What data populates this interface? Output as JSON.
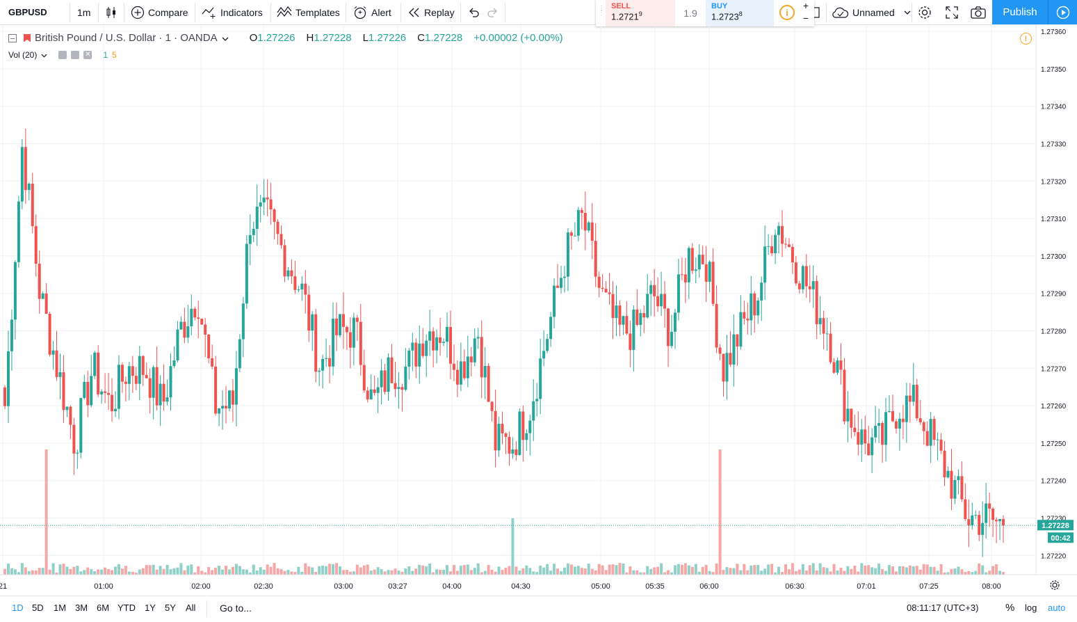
{
  "toolbar": {
    "symbol": "GBPUSD",
    "interval": "1m",
    "compare": "Compare",
    "indicators": "Indicators",
    "templates": "Templates",
    "alert": "Alert",
    "replay": "Replay",
    "layout_name": "Unnamed",
    "publish": "Publish"
  },
  "trade": {
    "sell_label": "SELL",
    "sell_price_main": "1.2721",
    "sell_price_sup": "9",
    "spread": "1.9",
    "buy_label": "BUY",
    "buy_price_main": "1.2723",
    "buy_price_sup": "8",
    "zoom_in": "+",
    "zoom_out": "−",
    "info": "i"
  },
  "legend": {
    "title": "British Pound / U.S. Dollar · 1 · OANDA",
    "o_label": "O",
    "o_value": "1.27226",
    "h_label": "H",
    "h_value": "1.27228",
    "l_label": "L",
    "l_value": "1.27226",
    "c_label": "C",
    "c_value": "1.27228",
    "change": "+0.00002 (+0.00%)",
    "vol_label": "Vol (20)",
    "vol_value_1": "1",
    "vol_value_2": "5"
  },
  "chart_data": {
    "type": "candlestick",
    "symbol": "GBPUSD",
    "interval": "1m",
    "y_range": [
      1.27212,
      1.27362
    ],
    "y_ticks": [
      "1.27220",
      "1.27230",
      "1.27240",
      "1.27250",
      "1.27260",
      "1.27270",
      "1.27280",
      "1.27290",
      "1.27300",
      "1.27310",
      "1.27320",
      "1.27330",
      "1.27340",
      "1.27350",
      "1.27360"
    ],
    "x_ticks": [
      "21",
      "01:00",
      "02:00",
      "02:30",
      "03:00",
      "03:27",
      "04:00",
      "04:30",
      "05:00",
      "05:35",
      "06:00",
      "06:30",
      "07:01",
      "07:25",
      "08:00"
    ],
    "last_price_label": "1.27228",
    "countdown_label": "00:42",
    "last_price": 1.27228,
    "close_path": [
      1.2726,
      1.2733,
      1.2729,
      1.2727,
      1.2725,
      1.2727,
      1.2726,
      1.2727,
      1.2727,
      1.2726,
      1.2728,
      1.2729,
      1.2726,
      1.2726,
      1.2731,
      1.2731,
      1.273,
      1.2729,
      1.2727,
      1.2728,
      1.2728,
      1.2726,
      1.2727,
      1.2727,
      1.2728,
      1.2728,
      1.2727,
      1.2728,
      1.2725,
      1.2725,
      1.2726,
      1.2728,
      1.273,
      1.2731,
      1.2729,
      1.2728,
      1.2728,
      1.2729,
      1.2728,
      1.273,
      1.273,
      1.2727,
      1.2728,
      1.2729,
      1.2731,
      1.273,
      1.2729,
      1.2728,
      1.2726,
      1.2725,
      1.2725,
      1.2726,
      1.2726,
      1.2725,
      1.2724,
      1.2723,
      1.2723,
      1.27228
    ],
    "volume_spikes": [
      {
        "time_index": 0.042,
        "value": 1.0,
        "color": "green"
      },
      {
        "time_index": 0.509,
        "value": 0.45,
        "color": "red"
      },
      {
        "time_index": 0.717,
        "value": 1.0,
        "color": "red"
      }
    ]
  },
  "bottombar": {
    "ranges": [
      "1D",
      "5D",
      "1M",
      "3M",
      "6M",
      "YTD",
      "1Y",
      "5Y",
      "All"
    ],
    "goto": "Go to...",
    "clock": "08:11:17 (UTC+3)",
    "pct": "%",
    "log": "log",
    "auto": "auto"
  },
  "colors": {
    "up": "#26a69a",
    "down": "#ef5350",
    "vol_up": "#8fd1c9",
    "vol_down": "#f5a7a6",
    "accent": "#2196f3",
    "grid": "#eef0f4"
  }
}
